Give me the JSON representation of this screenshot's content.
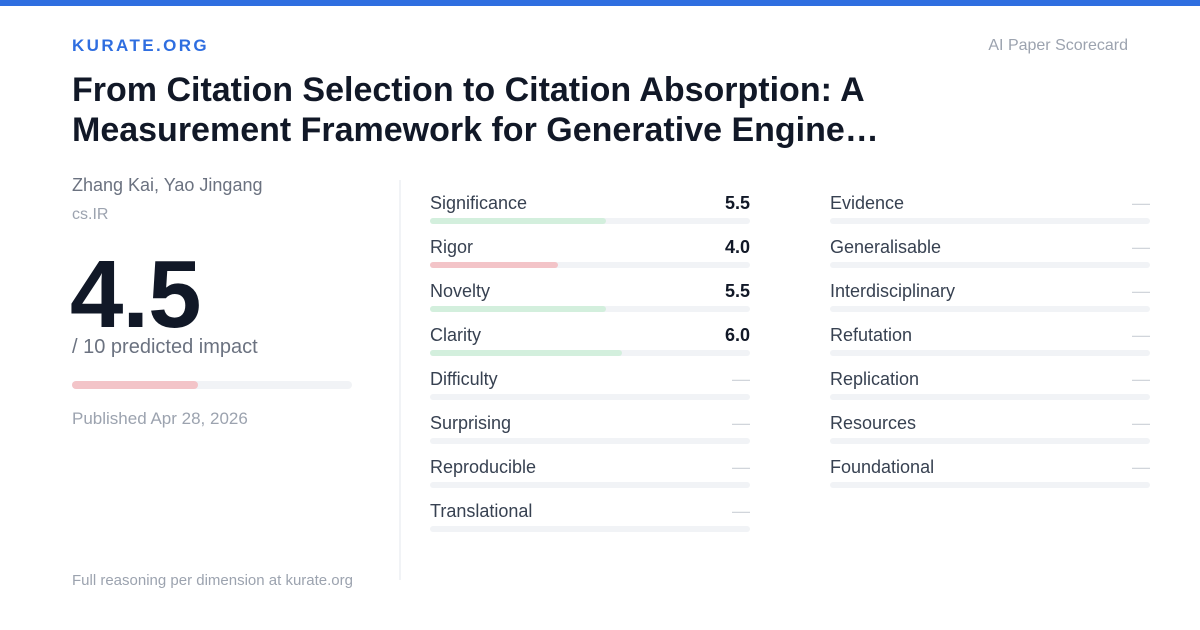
{
  "header": {
    "brand": "KURATE.ORG",
    "tag": "AI Paper Scorecard"
  },
  "paper": {
    "title_lines": [
      "From Citation Selection to Citation Absorption: A",
      "Measurement Framework for Generative Engine…"
    ],
    "authors": "Zhang Kai, Yao Jingang",
    "category": "cs.IR",
    "score": {
      "value": 4.5,
      "label": "4.5"
    },
    "scale": {
      "value": 10,
      "label": "/ 10 predicted impact"
    },
    "score_color": "#f3c4c8",
    "published": "Published Apr 28, 2026"
  },
  "dimensions": {
    "left": [
      {
        "name": "Significance",
        "score": {
          "value": 5.5,
          "label": "5.5"
        },
        "color": "#d3efdd"
      },
      {
        "name": "Rigor",
        "score": {
          "value": 4.0,
          "label": "4.0"
        },
        "color": "#f3c4c8"
      },
      {
        "name": "Novelty",
        "score": {
          "value": 5.5,
          "label": "5.5"
        },
        "color": "#d3efdd"
      },
      {
        "name": "Clarity",
        "score": {
          "value": 6.0,
          "label": "6.0"
        },
        "color": "#d3efdd"
      },
      {
        "name": "Difficulty",
        "score": {
          "label": "—"
        }
      },
      {
        "name": "Surprising",
        "score": {
          "label": "—"
        }
      },
      {
        "name": "Reproducible",
        "score": {
          "label": "—"
        }
      },
      {
        "name": "Translational",
        "score": {
          "label": "—"
        }
      }
    ],
    "right": [
      {
        "name": "Evidence",
        "score": {
          "label": "—"
        }
      },
      {
        "name": "Generalisable",
        "score": {
          "label": "—"
        }
      },
      {
        "name": "Interdisciplinary",
        "score": {
          "label": "—"
        }
      },
      {
        "name": "Refutation",
        "score": {
          "label": "—"
        }
      },
      {
        "name": "Replication",
        "score": {
          "label": "—"
        }
      },
      {
        "name": "Resources",
        "score": {
          "label": "—"
        }
      },
      {
        "name": "Foundational",
        "score": {
          "label": "—"
        }
      }
    ]
  },
  "footer": "Full reasoning per dimension at kurate.org"
}
